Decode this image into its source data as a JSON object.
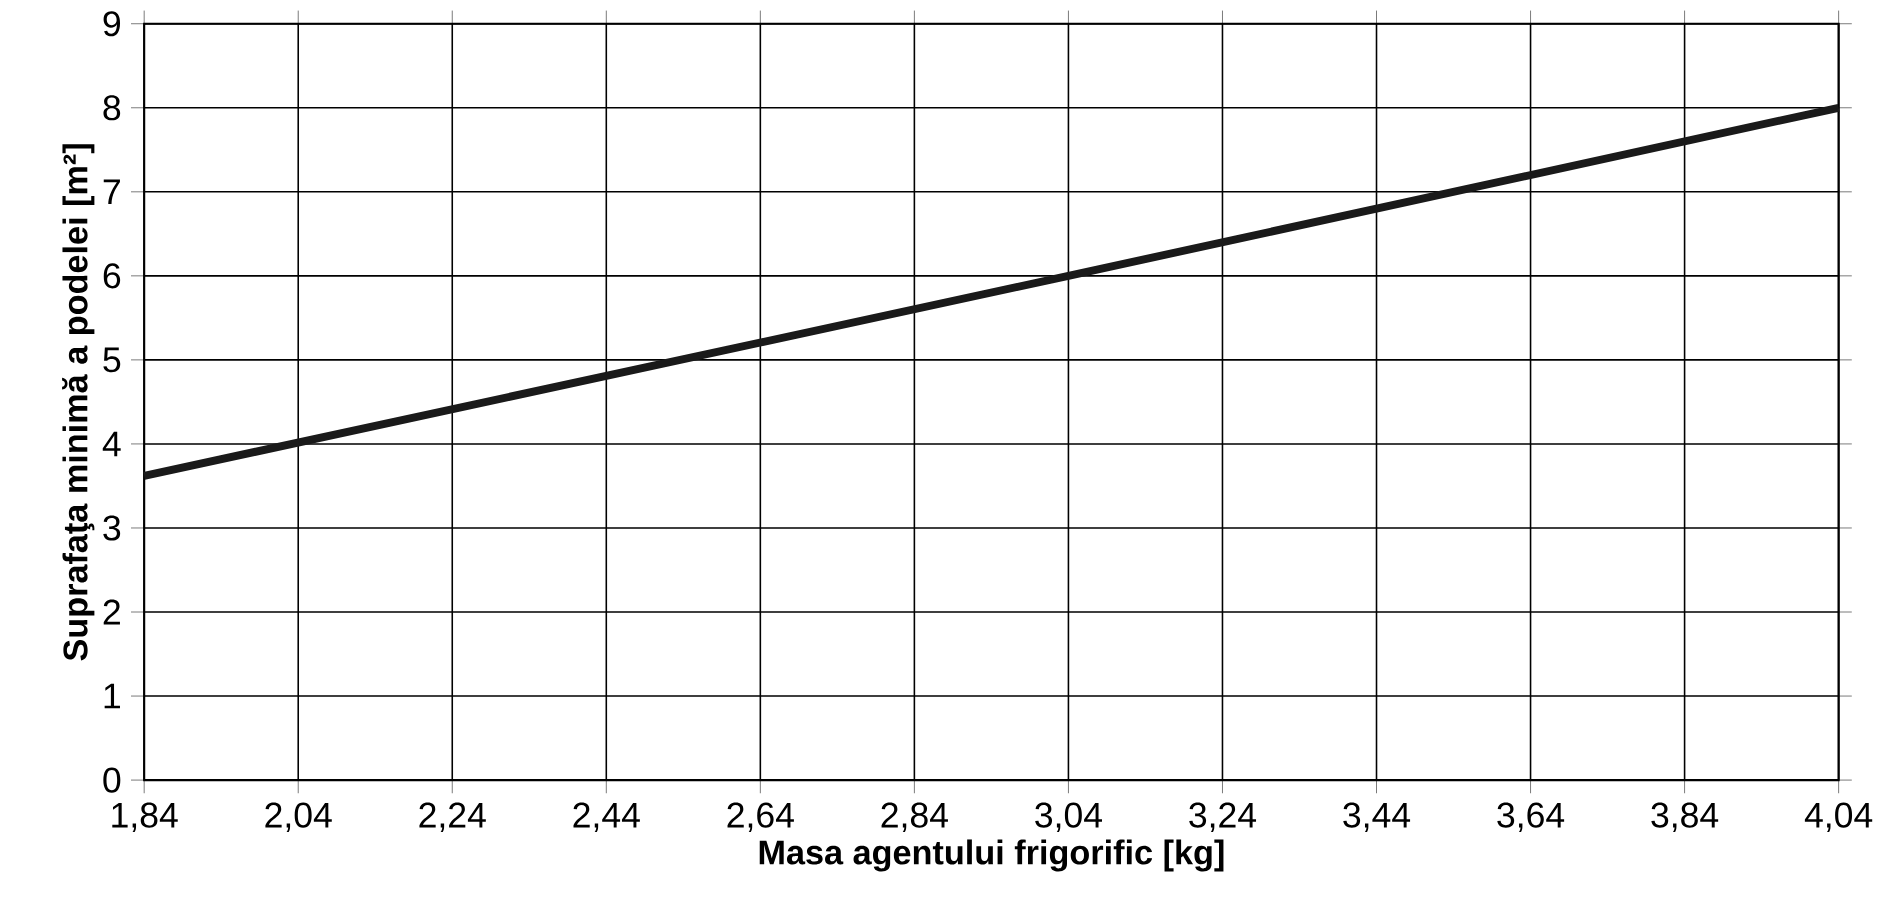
{
  "chart_data": {
    "type": "line",
    "xlabel": "Masa agentului frigorific [kg]",
    "ylabel": "Suprafaţa minimă a podelei [m²]",
    "x": [
      1.84,
      3.04,
      4.04
    ],
    "series": [
      {
        "color": "#1a1a1a",
        "values": [
          3.62,
          6.0,
          8.0
        ]
      }
    ],
    "xlim": [
      1.84,
      4.04
    ],
    "xticks": [
      {
        "value": 1.84,
        "label": "1,84"
      },
      {
        "value": 2.04,
        "label": "2,04"
      },
      {
        "value": 2.24,
        "label": "2,24"
      },
      {
        "value": 2.44,
        "label": "2,44"
      },
      {
        "value": 2.64,
        "label": "2,64"
      },
      {
        "value": 2.84,
        "label": "2,84"
      },
      {
        "value": 3.04,
        "label": "3,04"
      },
      {
        "value": 3.24,
        "label": "3,24"
      },
      {
        "value": 3.44,
        "label": "3,44"
      },
      {
        "value": 3.64,
        "label": "3,64"
      },
      {
        "value": 3.84,
        "label": "3,84"
      },
      {
        "value": 4.04,
        "label": "4,04"
      }
    ],
    "ylim": [
      0,
      9
    ],
    "yticks": [
      0,
      1,
      2,
      3,
      4,
      5,
      6,
      7,
      8,
      9
    ],
    "grid": true,
    "marker": "none",
    "line_style": "solid"
  }
}
